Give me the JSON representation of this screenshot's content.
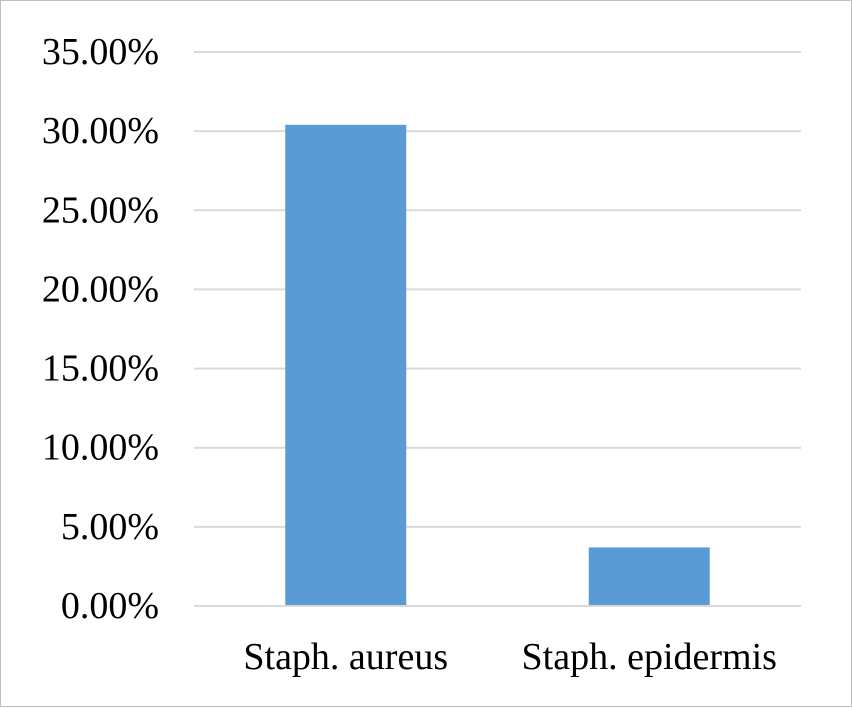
{
  "chart_data": {
    "type": "bar",
    "categories": [
      "Staph. aureus",
      "Staph. epidermis"
    ],
    "values": [
      30.4,
      3.7
    ],
    "value_unit": "%",
    "title": "",
    "xlabel": "",
    "ylabel": "",
    "ylim": [
      0,
      35
    ],
    "yticks": [
      0,
      5,
      10,
      15,
      20,
      25,
      30,
      35
    ],
    "ytick_labels": [
      "0.00%",
      "5.00%",
      "10.00%",
      "15.00%",
      "20.00%",
      "25.00%",
      "30.00%",
      "35.00%"
    ],
    "grid": true,
    "legend": "none",
    "bar_color": "#5b9bd5",
    "gridline_color": "#d9d9d9"
  }
}
